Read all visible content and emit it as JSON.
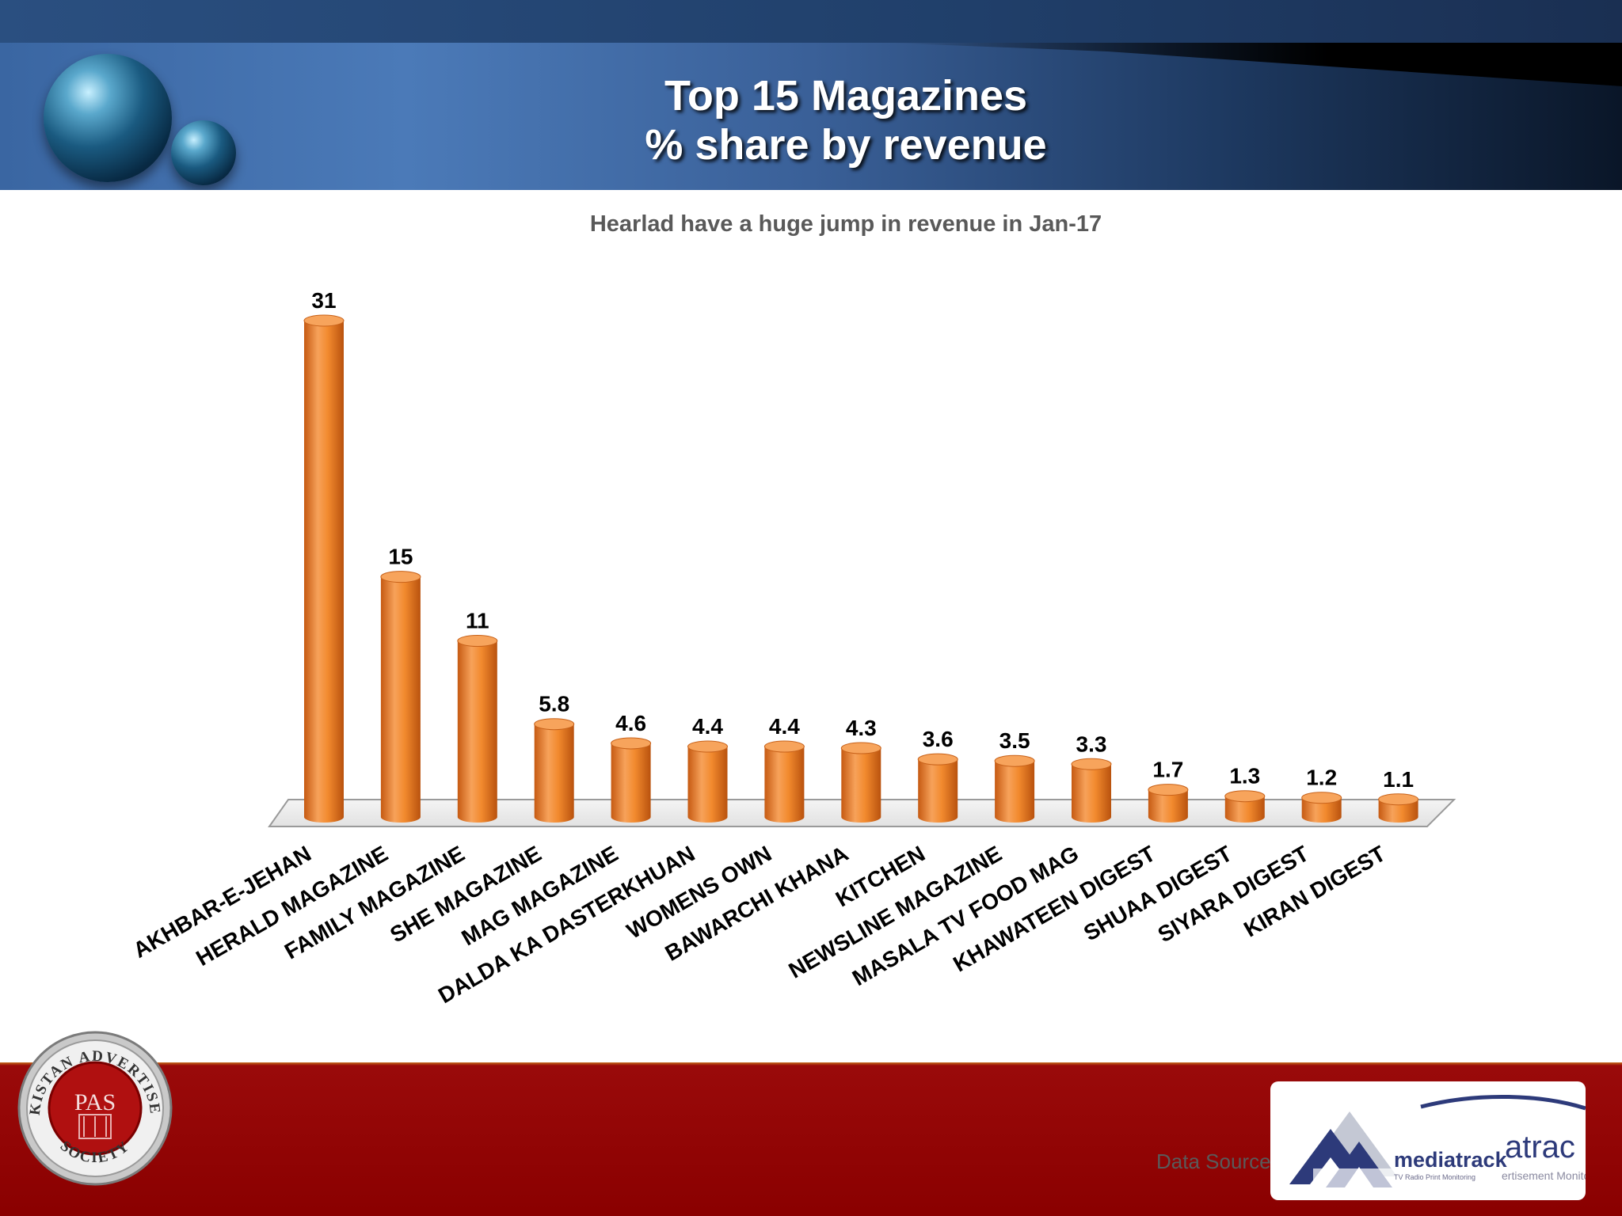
{
  "header": {
    "title_line1": "Top 15 Magazines",
    "title_line2": "% share by revenue"
  },
  "chart_data": {
    "type": "bar",
    "title": "Top 15 Magazines % share by revenue",
    "subtitle": "Hearlad have a huge jump in revenue in Jan-17",
    "categories": [
      "AKHBAR-E-JEHAN",
      "HERALD MAGAZINE",
      "FAMILY MAGAZINE",
      "SHE MAGAZINE",
      "MAG MAGAZINE",
      "DALDA KA DASTERKHUAN",
      "WOMENS OWN",
      "BAWARCHI KHANA",
      "KITCHEN",
      "NEWSLINE MAGAZINE",
      "MASALA TV FOOD MAG",
      "KHAWATEEN DIGEST",
      "SHUAA DIGEST",
      "SIYARA DIGEST",
      "KIRAN DIGEST"
    ],
    "values": [
      31,
      15,
      11,
      5.8,
      4.6,
      4.4,
      4.4,
      4.3,
      3.6,
      3.5,
      3.3,
      1.7,
      1.3,
      1.2,
      1.1
    ],
    "xlabel": "",
    "ylabel": "",
    "ylim": [
      0,
      31
    ],
    "grid": false,
    "bar_color": "#f28a2e"
  },
  "footer": {
    "data_source_label": "Data Source:",
    "pas_logo_text": {
      "initials": "PAS",
      "ring_top": "PAKISTAN ADVERTISERS",
      "ring_bottom": "SOCIETY"
    },
    "mediatrack_logo_text": {
      "name": "mediatrack",
      "tagline": "TV Radio Print Monitoring",
      "partial": "atrac",
      "partial_sub": "ertisement Monito"
    }
  }
}
